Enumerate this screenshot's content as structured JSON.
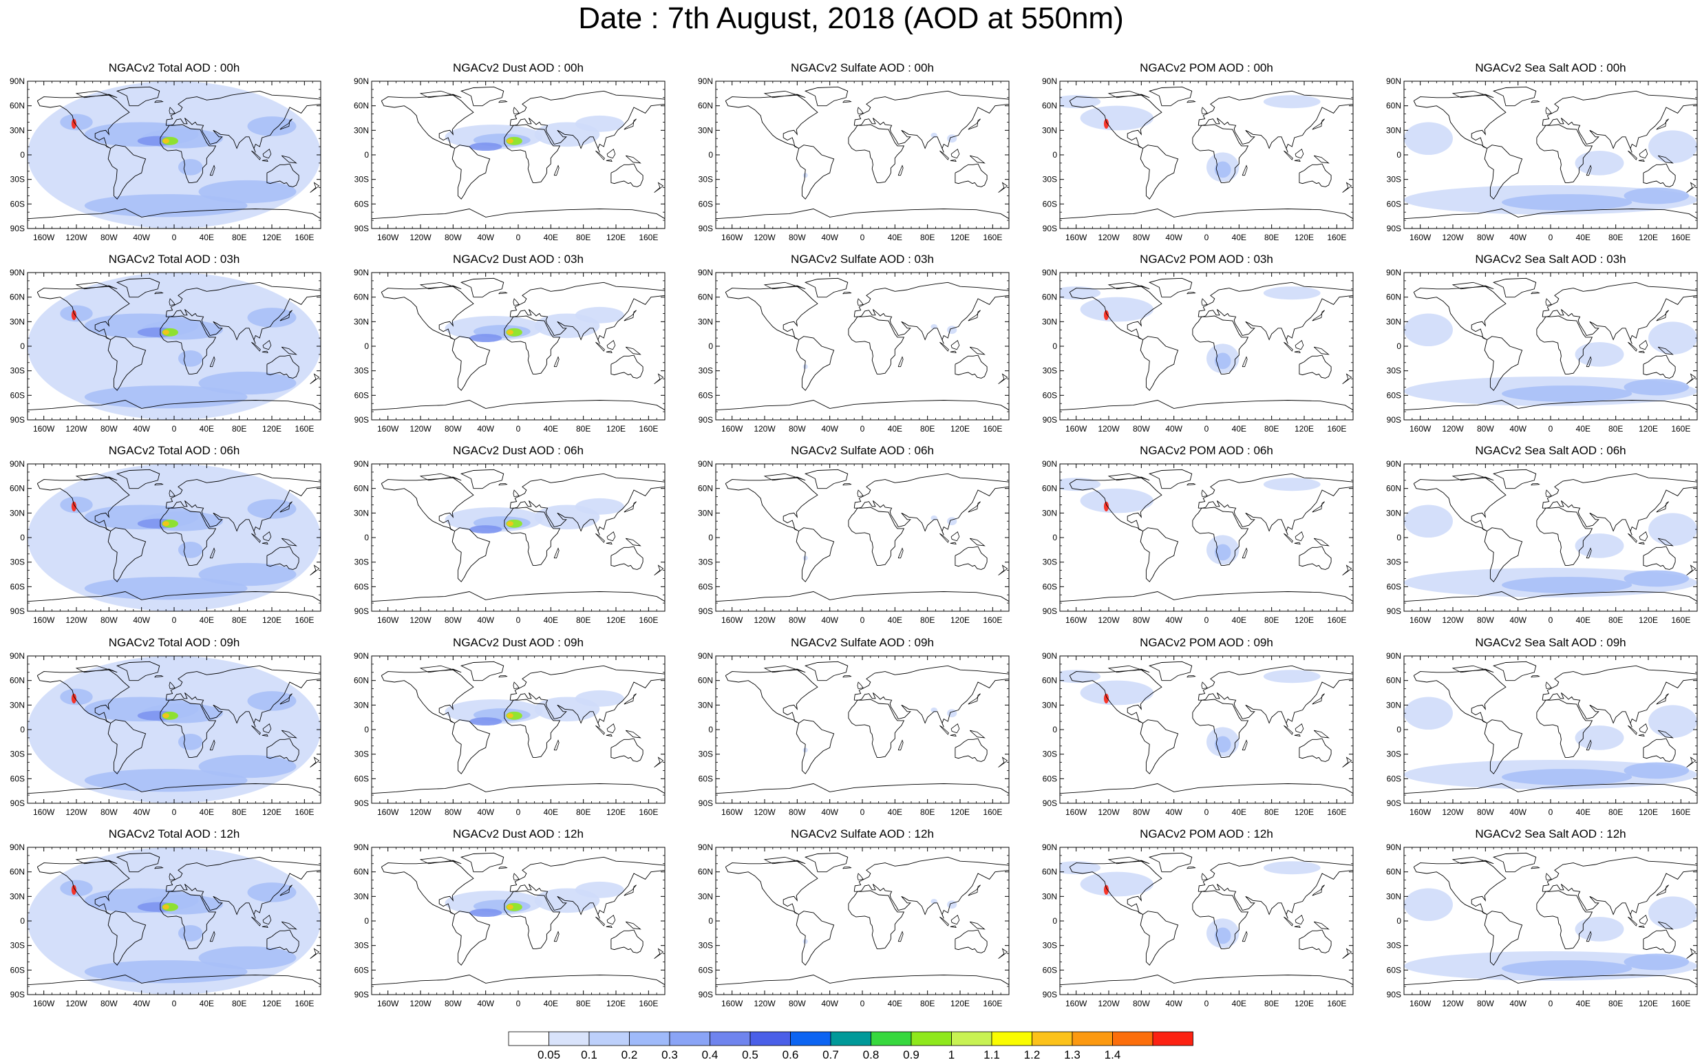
{
  "title": "Date : 7th August, 2018 (AOD at 550nm)",
  "hours": [
    "00h",
    "03h",
    "06h",
    "09h",
    "12h"
  ],
  "columns": [
    {
      "key": "total",
      "kind": "total"
    },
    {
      "key": "dust",
      "kind": "dust"
    },
    {
      "key": "sulfate",
      "kind": "sulfate"
    },
    {
      "key": "pom",
      "kind": "pom"
    },
    {
      "key": "seasalt",
      "kind": "seasalt"
    }
  ],
  "panel_titles": [
    [
      "NGACv2 Total AOD : 00h",
      "NGACv2 Dust AOD : 00h",
      "NGACv2 Sulfate AOD : 00h",
      "NGACv2 POM AOD : 00h",
      "NGACv2 Sea Salt AOD : 00h"
    ],
    [
      "NGACv2 Total AOD : 03h",
      "NGACv2 Dust AOD : 03h",
      "NGACv2 Sulfate AOD : 03h",
      "NGACv2 POM AOD : 03h",
      "NGACv2 Sea Salt AOD : 03h"
    ],
    [
      "NGACv2 Total AOD : 06h",
      "NGACv2 Dust AOD : 06h",
      "NGACv2 Sulfate AOD : 06h",
      "NGACv2 POM AOD : 06h",
      "NGACv2 Sea Salt AOD : 06h"
    ],
    [
      "NGACv2 Total AOD : 09h",
      "NGACv2 Dust AOD : 09h",
      "NGACv2 Sulfate AOD : 09h",
      "NGACv2 POM AOD : 09h",
      "NGACv2 Sea Salt  AOD : 09h"
    ],
    [
      "NGACv2 Total AOD : 12h",
      "NGACv2 Dust AOD : 12h",
      "NGACv2 Sulfate AOD : 12h",
      "NGACv2 POM  AOD : 12h",
      "NGACv2 Sea Salt  AOD : 12h"
    ]
  ],
  "lat_labels": [
    "90N",
    "60N",
    "30N",
    "0",
    "30S",
    "60S",
    "90S"
  ],
  "lon_labels": [
    "160W",
    "120W",
    "80W",
    "40W",
    "0",
    "40E",
    "80E",
    "120E",
    "160E"
  ],
  "lon_values": [
    -160,
    -120,
    -80,
    -40,
    0,
    40,
    80,
    120,
    160
  ],
  "lat_values": [
    90,
    60,
    30,
    0,
    -30,
    -60,
    -90
  ],
  "colorbar": {
    "labels": [
      "0.05",
      "0.1",
      "0.2",
      "0.3",
      "0.4",
      "0.5",
      "0.6",
      "0.7",
      "0.8",
      "0.9",
      "1",
      "1.1",
      "1.2",
      "1.3",
      "1.4"
    ],
    "colors": [
      "#ffffff",
      "#d9e3fb",
      "#bdd0fb",
      "#9fbafa",
      "#8aa4f6",
      "#6f84ee",
      "#4a5fe8",
      "#0c64f2",
      "#009999",
      "#37d83e",
      "#8fe81c",
      "#c8f253",
      "#fafc00",
      "#fcc21a",
      "#fc9910",
      "#fc6e0b",
      "#fc2212"
    ]
  },
  "colors": {
    "aod_light": "#cfdcf9",
    "aod_mid": "#a8c0f7",
    "aod_high": "#7d95ef",
    "dust_core": "#8fe81c",
    "dust_peak": "#fcc21a",
    "fire_peak": "#fc2212",
    "coastline": "#000000"
  }
}
